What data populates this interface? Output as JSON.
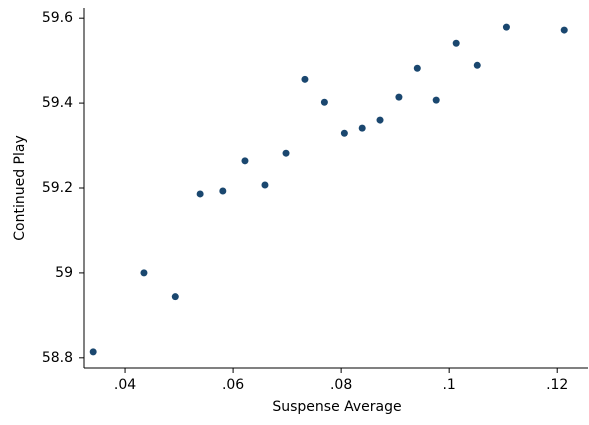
{
  "chart_data": {
    "type": "scatter",
    "xlabel": "Suspense Average",
    "ylabel": "Continued Play",
    "color": "#1a476f",
    "x": [
      0.0341,
      0.0435,
      0.0493,
      0.0539,
      0.0581,
      0.0622,
      0.0659,
      0.0698,
      0.0733,
      0.0769,
      0.0806,
      0.0839,
      0.0872,
      0.0907,
      0.0941,
      0.0976,
      0.1013,
      0.1052,
      0.1106,
      0.1213
    ],
    "values": [
      58.814,
      59.0,
      58.944,
      59.186,
      59.193,
      59.264,
      59.207,
      59.282,
      59.456,
      59.402,
      59.329,
      59.341,
      59.36,
      59.414,
      59.482,
      59.407,
      59.541,
      59.489,
      59.579,
      59.572
    ],
    "xlim": [
      0.0324,
      0.1257
    ],
    "ylim": [
      58.776,
      59.624
    ],
    "xticks": [
      {
        "value": 0.04,
        "label": ".04"
      },
      {
        "value": 0.06,
        "label": ".06"
      },
      {
        "value": 0.08,
        "label": ".08"
      },
      {
        "value": 0.1,
        "label": ".1"
      },
      {
        "value": 0.12,
        "label": ".12"
      }
    ],
    "yticks": [
      58.8,
      59,
      59.2,
      59.4,
      59.6
    ]
  }
}
